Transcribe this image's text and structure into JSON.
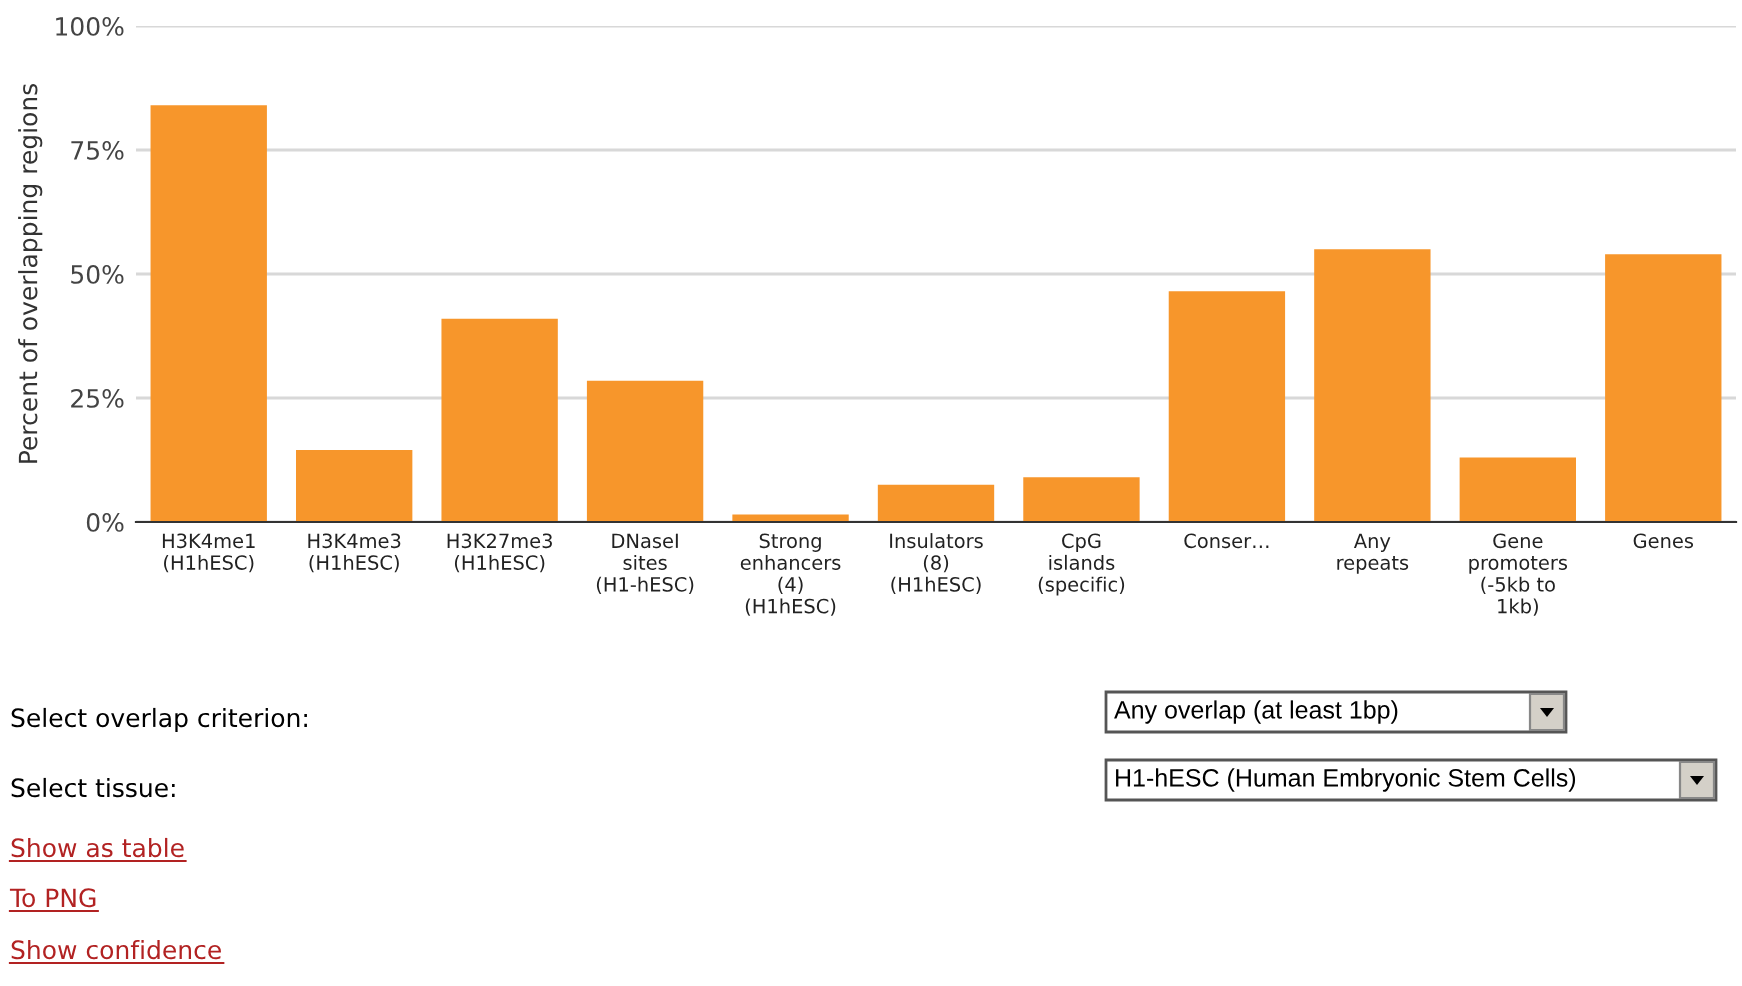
{
  "chart_data": {
    "type": "bar",
    "ylabel": "Percent of overlapping regions",
    "categories": [
      "H3K4me1\n(H1hESC)",
      "H3K4me3\n(H1hESC)",
      "H3K27me3\n(H1hESC)",
      "DNaseI\nsites\n(H1-hESC)",
      "Strong\nenhancers\n(4)\n(H1hESC)",
      "Insulators\n(8)\n(H1hESC)",
      "CpG\nislands\n(specific)",
      "Conser…",
      "Any\nrepeats",
      "Gene\npromoters\n(-5kb to\n1kb)",
      "Genes"
    ],
    "values": [
      84,
      14.5,
      41,
      28.5,
      1.5,
      7.5,
      9,
      46.5,
      55,
      13,
      54
    ],
    "color": "#f7962b",
    "ylim": [
      0,
      100
    ],
    "yticks": [
      {
        "value": 0,
        "label": "0%"
      },
      {
        "value": 25,
        "label": "25%"
      },
      {
        "value": 50,
        "label": "50%"
      },
      {
        "value": 75,
        "label": "75%"
      },
      {
        "value": 100,
        "label": "100%"
      }
    ],
    "grid": "y",
    "legend": false,
    "annotations": [
      "Select overlap criterion:",
      "Select tissue:",
      "Any overlap (at least 1bp)",
      "H1-hESC (Human Embryonic Stem Cells)",
      "Show as table",
      "To PNG",
      "Show confidence"
    ]
  }
}
